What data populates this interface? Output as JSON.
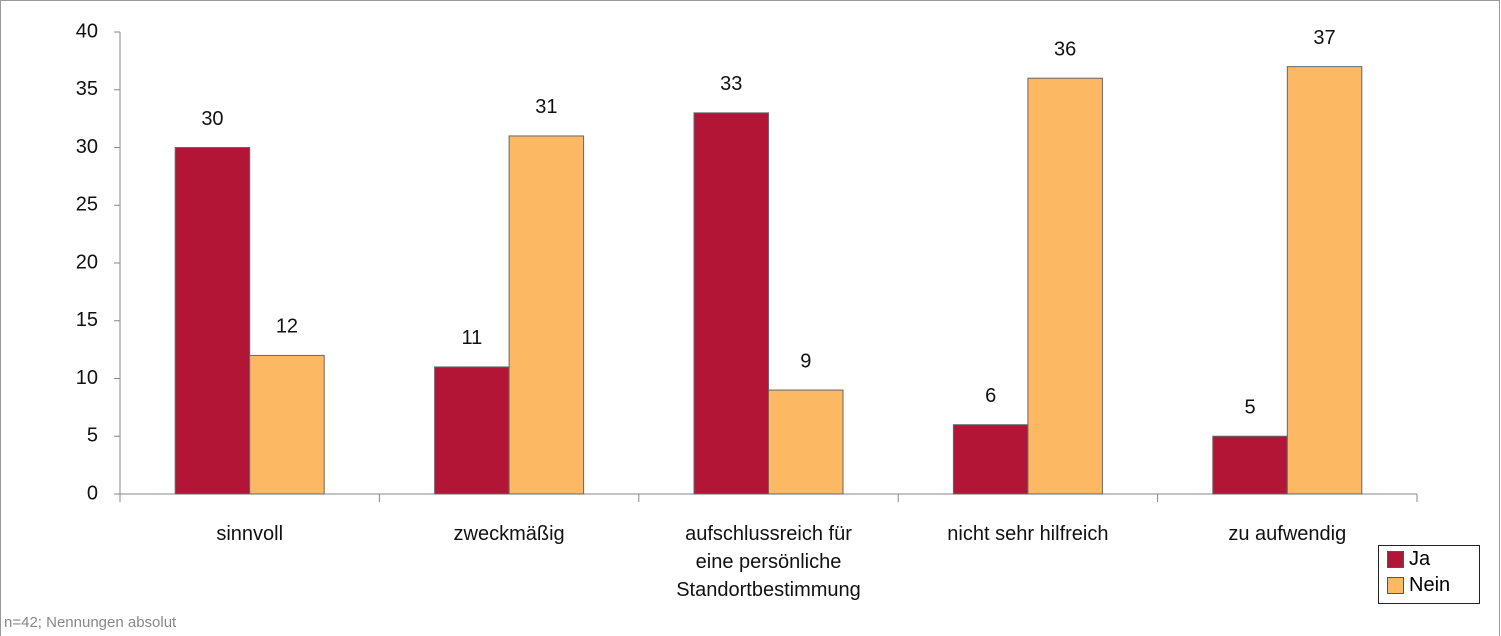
{
  "chart_data": {
    "type": "bar",
    "categories": [
      "sinnvoll",
      "zweckmäßig",
      "aufschlussreich für eine persönliche Standortbestimmung",
      "nicht sehr hilfreich",
      "zu aufwendig"
    ],
    "series": [
      {
        "name": "Ja",
        "color": "#b31536",
        "values": [
          30,
          11,
          33,
          6,
          5
        ]
      },
      {
        "name": "Nein",
        "color": "#fdb863",
        "values": [
          12,
          31,
          9,
          36,
          37
        ]
      }
    ],
    "ylim": [
      0,
      40
    ],
    "yticks": [
      0,
      5,
      10,
      15,
      20,
      25,
      30,
      35,
      40
    ],
    "legend": "bottom-right",
    "note": "n=42; Nennungen absolut"
  }
}
